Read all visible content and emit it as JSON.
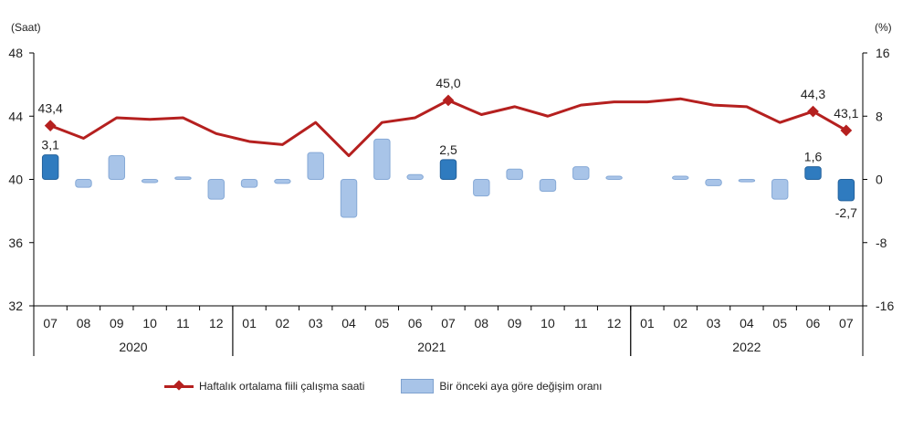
{
  "chart_data": {
    "type": "bar+line",
    "categories": [
      "07",
      "08",
      "09",
      "10",
      "11",
      "12",
      "01",
      "02",
      "03",
      "04",
      "05",
      "06",
      "07",
      "08",
      "09",
      "10",
      "11",
      "12",
      "01",
      "02",
      "03",
      "04",
      "05",
      "06",
      "07"
    ],
    "year_groups": [
      {
        "label": "2020",
        "start": 0,
        "end": 5
      },
      {
        "label": "2021",
        "start": 6,
        "end": 17
      },
      {
        "label": "2022",
        "start": 18,
        "end": 24
      }
    ],
    "line_series": {
      "name": "Haftalık ortalama fiili çalışma saati",
      "color": "#b5201f",
      "values": [
        43.4,
        42.6,
        43.9,
        43.8,
        43.9,
        42.9,
        42.4,
        42.2,
        43.6,
        41.5,
        43.6,
        43.9,
        45.0,
        44.1,
        44.6,
        44.0,
        44.7,
        44.9,
        44.9,
        45.1,
        44.7,
        44.6,
        43.6,
        44.3,
        43.1
      ],
      "labels": {
        "0": "43,4",
        "12": "45,0",
        "23": "44,3",
        "24": "43,1"
      }
    },
    "bar_series": {
      "name": "Bir önceki aya göre değişim oranı",
      "color": "#a8c4e8",
      "highlight_color": "#2f7bbf",
      "values": [
        3.1,
        -1.0,
        3.0,
        -0.4,
        0.3,
        -2.5,
        -1.0,
        -0.5,
        3.4,
        -4.8,
        5.1,
        0.6,
        2.5,
        -2.1,
        1.3,
        -1.5,
        1.6,
        0.4,
        0.0,
        0.4,
        -0.8,
        -0.3,
        -2.5,
        1.6,
        -2.7
      ],
      "highlight": [
        0,
        12,
        23,
        24
      ],
      "labels": {
        "0": "3,1",
        "12": "2,5",
        "23": "1,6",
        "24": "-2,7"
      }
    },
    "y_left": {
      "unit": "(Saat)",
      "min": 32,
      "max": 48,
      "ticks": [
        32,
        36,
        40,
        44,
        48
      ]
    },
    "y_right": {
      "unit": "(%)",
      "min": -16,
      "max": 16,
      "ticks": [
        -16,
        -8,
        0,
        8,
        16
      ],
      "tick_labels": [
        "-16",
        "-8",
        "0",
        "8",
        "16"
      ]
    },
    "legend": [
      {
        "label": "Haftalık ortalama fiili çalışma saati",
        "kind": "line"
      },
      {
        "label": "Bir önceki aya göre değişim oranı",
        "kind": "bar"
      }
    ],
    "legend_position": "bottom",
    "grid": false
  }
}
